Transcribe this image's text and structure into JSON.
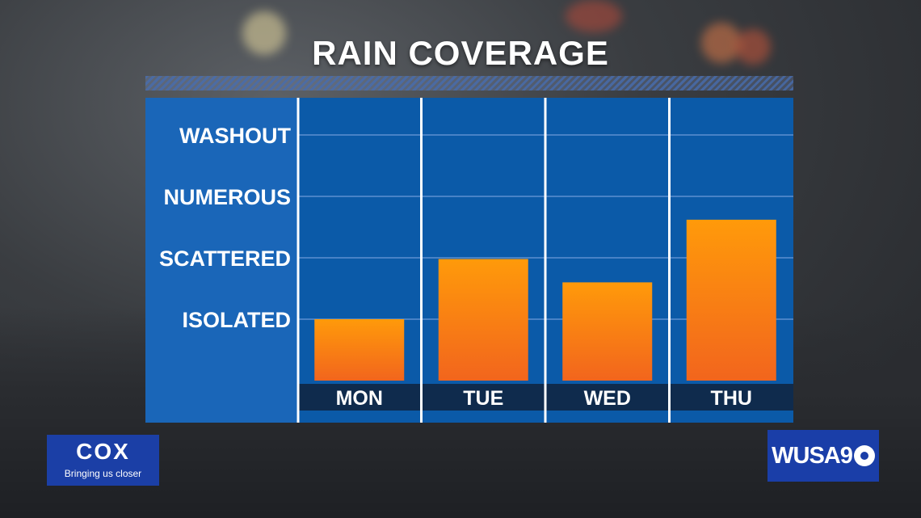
{
  "colors": {
    "panel": "#0b5aa8",
    "label_panel": "#1a66b8",
    "bar_top": "#ff9a0a",
    "bar_bottom": "#f26a1b",
    "xband": "#0f2b4d"
  },
  "chart_data": {
    "type": "bar",
    "title": "RAIN COVERAGE",
    "categories": [
      "MON",
      "TUE",
      "WED",
      "THU"
    ],
    "values": [
      1.0,
      1.98,
      1.6,
      2.62
    ],
    "y_levels": [
      "ISOLATED",
      "SCATTERED",
      "NUMEROUS",
      "WASHOUT"
    ],
    "y_level_values": [
      1,
      2,
      3,
      4
    ],
    "ylim": [
      0,
      4.3
    ],
    "grid": true,
    "legend": "none"
  },
  "sponsor": {
    "name": "COX",
    "tagline": "Bringing us closer"
  },
  "station": {
    "logo_text": "WUSA9",
    "icon": "cbs-eye-icon"
  }
}
